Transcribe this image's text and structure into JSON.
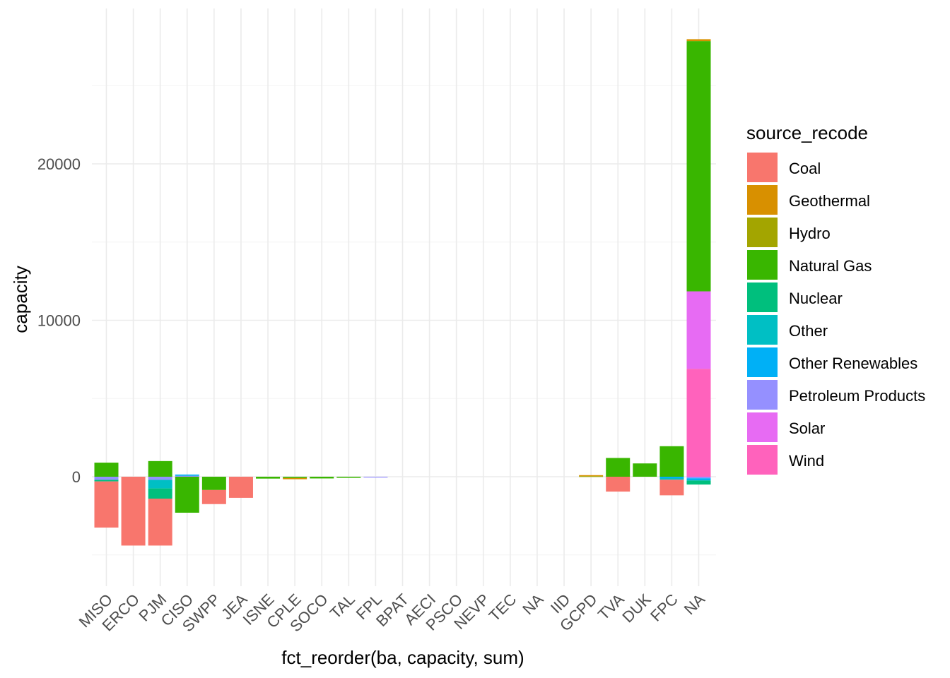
{
  "chart_data": {
    "type": "bar",
    "stacked": true,
    "xlabel": "fct_reorder(ba, capacity, sum)",
    "ylabel": "capacity",
    "ylim": [
      -7000,
      29000
    ],
    "yticks": [
      0,
      10000,
      20000
    ],
    "grid": true,
    "legend_position": "right",
    "legend_title": "source_recode",
    "categories": [
      "MISO",
      "ERCO",
      "PJM",
      "CISO",
      "SWPP",
      "JEA",
      "ISNE",
      "CPLE",
      "SOCO",
      "TAL",
      "FPL",
      "BPAT",
      "AECI",
      "PSCO",
      "NEVP",
      "TEC",
      "NA",
      "IID",
      "GCPD",
      "TVA",
      "DUK",
      "FPC",
      "NA"
    ],
    "series": [
      {
        "name": "Coal",
        "color": "#F8766D",
        "values": [
          -2950,
          -4400,
          -3000,
          0,
          -900,
          -1350,
          0,
          0,
          0,
          0,
          0,
          0,
          0,
          0,
          0,
          0,
          0,
          0,
          0,
          -950,
          0,
          -1000,
          0
        ]
      },
      {
        "name": "Geothermal",
        "color": "#D89000",
        "values": [
          0,
          0,
          0,
          0,
          0,
          0,
          0,
          -80,
          0,
          0,
          0,
          0,
          0,
          0,
          0,
          0,
          0,
          0,
          60,
          0,
          0,
          0,
          120
        ]
      },
      {
        "name": "Hydro",
        "color": "#A3A500",
        "values": [
          0,
          0,
          0,
          0,
          0,
          0,
          0,
          0,
          0,
          0,
          0,
          0,
          0,
          0,
          0,
          0,
          0,
          0,
          40,
          0,
          0,
          0,
          0
        ]
      },
      {
        "name": "Natural Gas",
        "color": "#39B600",
        "values": [
          900,
          0,
          1000,
          -2300,
          -850,
          0,
          -120,
          -80,
          -110,
          -70,
          0,
          0,
          0,
          0,
          0,
          0,
          0,
          0,
          0,
          1200,
          850,
          1950,
          16000
        ]
      },
      {
        "name": "Nuclear",
        "color": "#00BF7D",
        "values": [
          -100,
          0,
          -650,
          0,
          0,
          0,
          0,
          0,
          0,
          0,
          0,
          0,
          0,
          0,
          0,
          0,
          0,
          0,
          0,
          0,
          0,
          0,
          -260
        ]
      },
      {
        "name": "Other",
        "color": "#00BFC4",
        "values": [
          0,
          0,
          -550,
          0,
          0,
          0,
          0,
          0,
          0,
          0,
          0,
          0,
          0,
          0,
          0,
          0,
          0,
          0,
          0,
          0,
          0,
          -100,
          0
        ]
      },
      {
        "name": "Other Renewables",
        "color": "#00B0F6",
        "values": [
          0,
          0,
          0,
          80,
          0,
          0,
          0,
          0,
          0,
          0,
          0,
          0,
          0,
          0,
          0,
          0,
          0,
          0,
          0,
          0,
          0,
          -90,
          -140
        ]
      },
      {
        "name": "Petroleum Products",
        "color": "#9590FF",
        "values": [
          -200,
          0,
          -200,
          60,
          0,
          0,
          0,
          0,
          0,
          0,
          -50,
          0,
          0,
          0,
          0,
          0,
          0,
          0,
          0,
          0,
          0,
          0,
          -100
        ]
      },
      {
        "name": "Solar",
        "color": "#E76BF3",
        "values": [
          0,
          0,
          0,
          0,
          0,
          0,
          0,
          0,
          0,
          0,
          0,
          0,
          0,
          0,
          0,
          0,
          0,
          0,
          0,
          0,
          0,
          0,
          4950
        ]
      },
      {
        "name": "Wind",
        "color": "#FF62BC",
        "values": [
          0,
          0,
          0,
          0,
          0,
          0,
          0,
          0,
          0,
          0,
          0,
          0,
          0,
          0,
          0,
          0,
          0,
          0,
          0,
          0,
          0,
          0,
          6900
        ]
      }
    ]
  }
}
